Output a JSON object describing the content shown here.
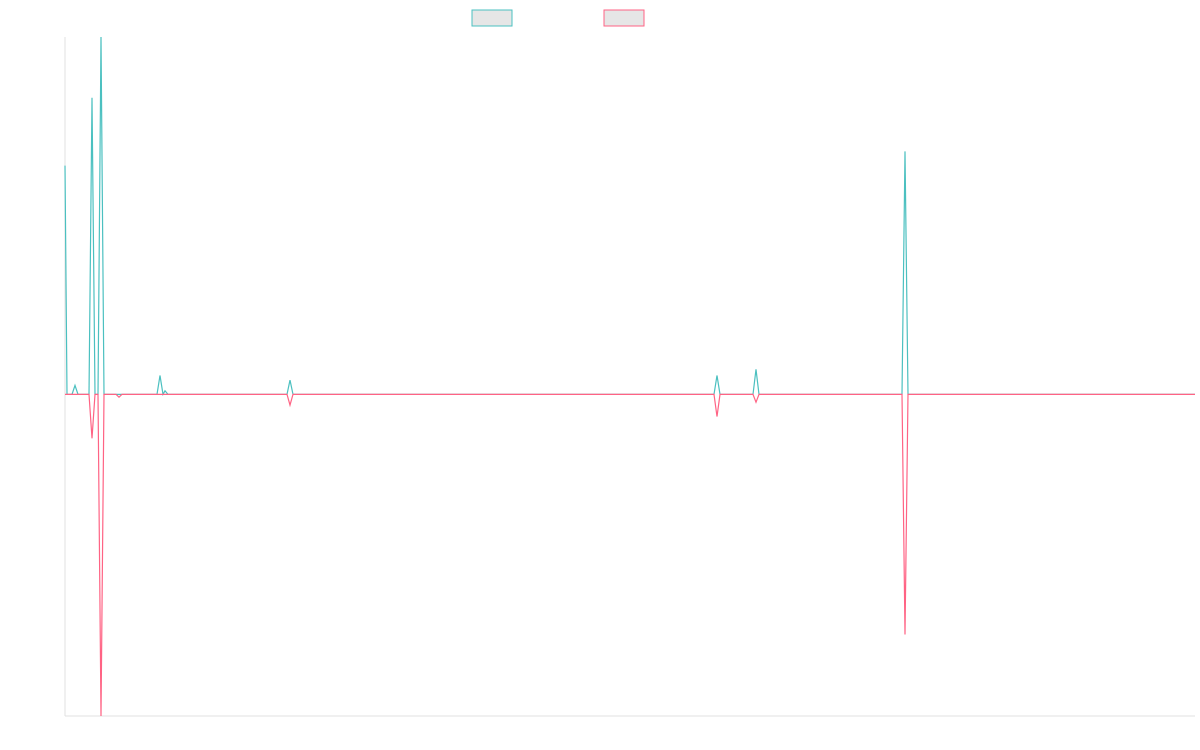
{
  "chart_data": {
    "type": "line",
    "x": [
      0,
      2,
      7,
      10,
      13,
      24,
      27,
      30,
      33,
      36,
      39,
      51,
      54,
      57,
      92,
      95,
      98,
      100,
      103,
      222,
      225,
      228,
      649,
      652,
      655,
      688,
      691,
      694,
      837,
      840,
      843,
      1130
    ],
    "series": [
      {
        "color": "#4bc0c0",
        "values": [
          0.64,
          0,
          0,
          0.025,
          0,
          0,
          0.83,
          0,
          0,
          1.0,
          0,
          0,
          0,
          0,
          0,
          0.053,
          0,
          0.01,
          0,
          0,
          0.04,
          0,
          0,
          0.053,
          0,
          0,
          0.07,
          0,
          0,
          0.68,
          0,
          0
        ]
      },
      {
        "color": "#ff6384",
        "values": [
          0,
          0,
          0,
          0,
          0,
          0,
          -0.123,
          0,
          0,
          -0.9,
          0,
          0,
          -0.008,
          0,
          0,
          0,
          0,
          0,
          0,
          0,
          -0.03,
          0,
          0,
          -0.062,
          0,
          0,
          -0.022,
          0,
          0,
          -0.672,
          0,
          0
        ]
      }
    ],
    "xlim": [
      0,
      1130
    ],
    "ylim": [
      -0.9,
      1.0
    ],
    "grid": false,
    "legend": "top"
  }
}
